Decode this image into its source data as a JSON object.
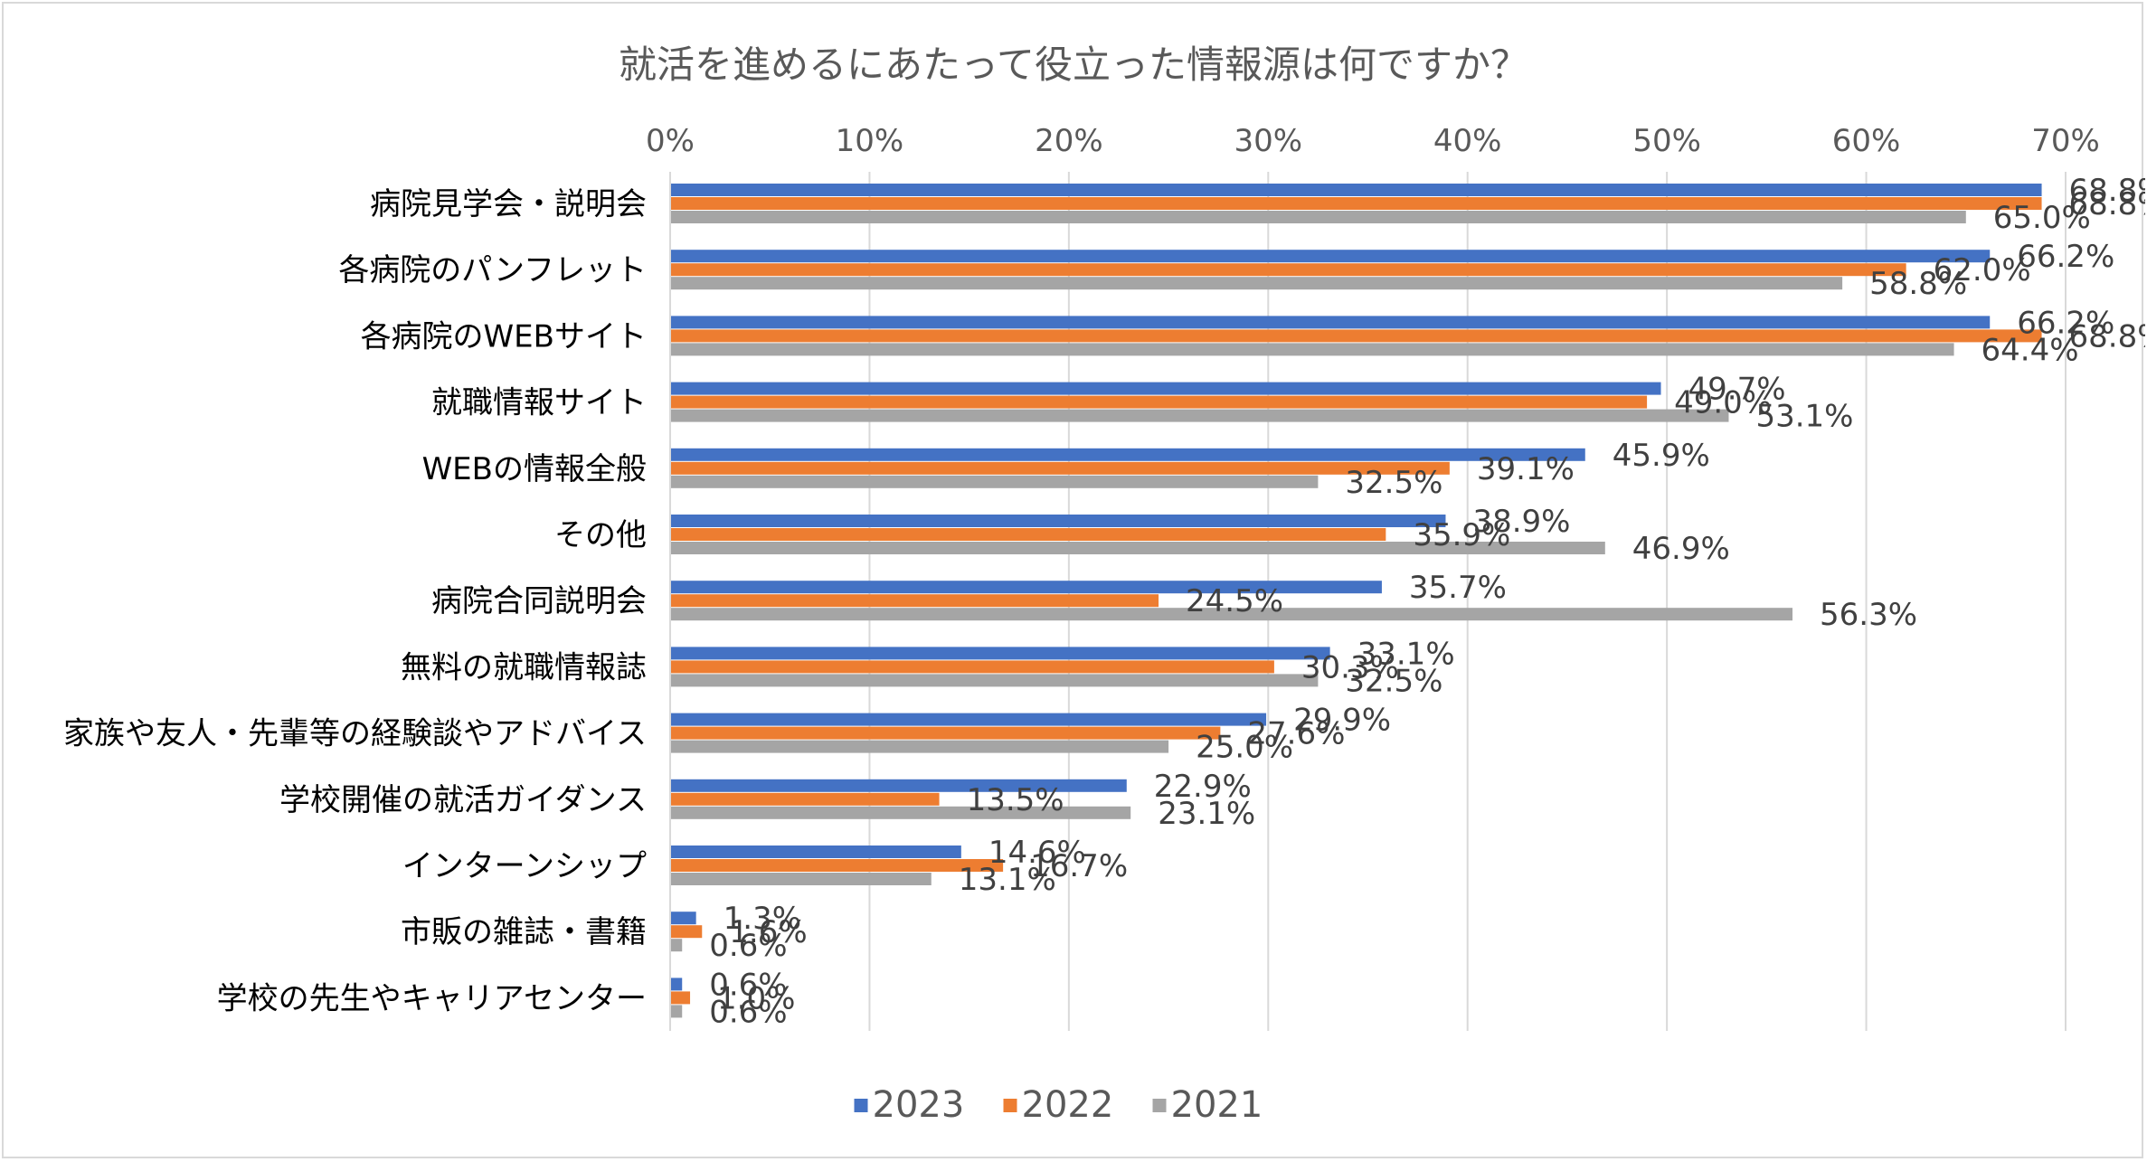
{
  "chart_data": {
    "type": "bar",
    "orientation": "horizontal",
    "title": "就活を進めるにあたって役立った情報源は何ですか？",
    "categories": [
      "病院見学会・説明会",
      "各病院のパンフレット",
      "各病院のWEBサイト",
      "就職情報サイト",
      "WEBの情報全般",
      "その他",
      "病院合同説明会",
      "無料の就職情報誌",
      "家族や友人・先輩等の経験談やアドバイス",
      "学校開催の就活ガイダンス",
      "インターンシップ",
      "市販の雑誌・書籍",
      "学校の先生やキャリアセンター"
    ],
    "series": [
      {
        "name": "2023",
        "color": "#4472c4",
        "values": [
          68.8,
          66.2,
          66.2,
          49.7,
          45.9,
          38.9,
          35.7,
          33.1,
          29.9,
          22.9,
          14.6,
          1.3,
          0.6
        ]
      },
      {
        "name": "2022",
        "color": "#ed7d31",
        "values": [
          68.8,
          62.0,
          68.8,
          49.0,
          39.1,
          35.9,
          24.5,
          30.3,
          27.6,
          13.5,
          16.7,
          1.6,
          1.0
        ]
      },
      {
        "name": "2021",
        "color": "#a5a5a5",
        "values": [
          65.0,
          58.8,
          64.4,
          53.1,
          32.5,
          46.9,
          56.3,
          32.5,
          25.0,
          23.1,
          13.1,
          0.6,
          0.6
        ]
      }
    ],
    "xlim": [
      0,
      70
    ],
    "xticks": [
      0,
      10,
      20,
      30,
      40,
      50,
      60,
      70
    ],
    "tick_suffix": "%",
    "grid": true,
    "xaxis_position": "top",
    "legend": {
      "position": "bottom",
      "entries": [
        "2023",
        "2022",
        "2021"
      ]
    }
  }
}
